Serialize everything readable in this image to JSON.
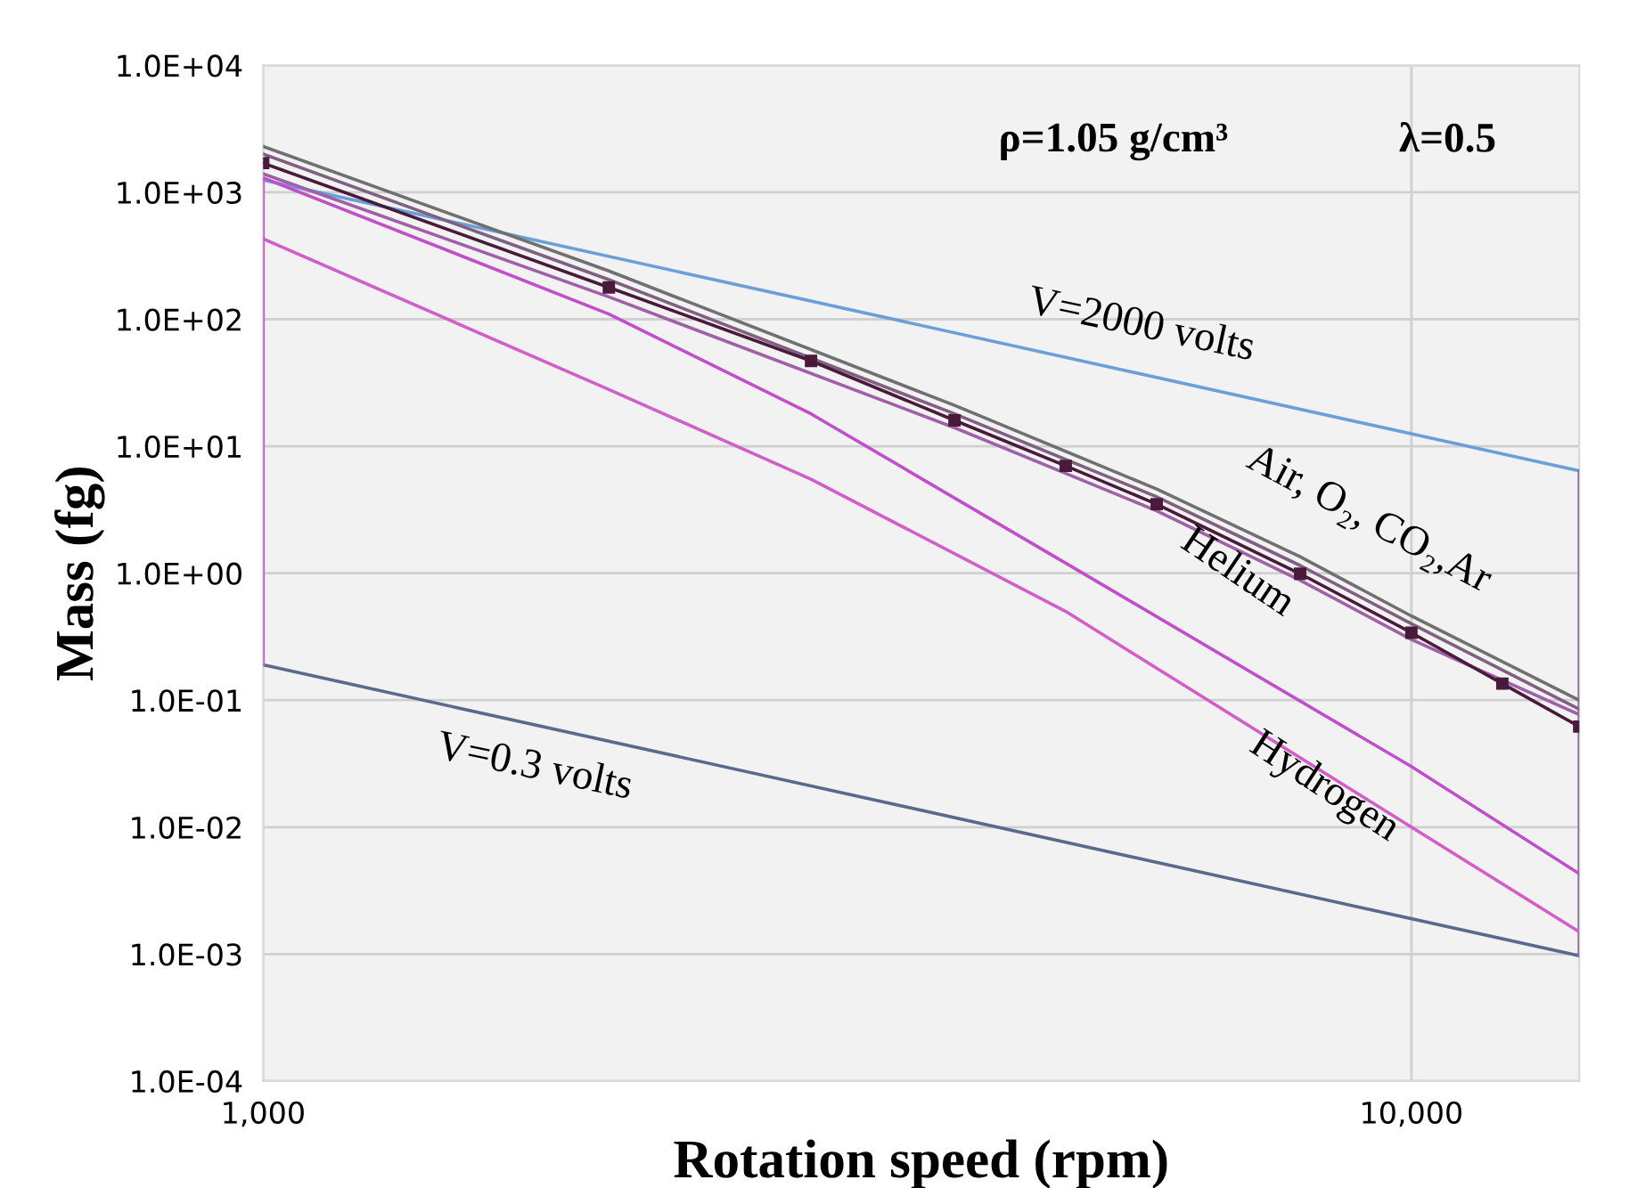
{
  "chart_data": {
    "type": "line",
    "xlabel": "Rotation speed (rpm)",
    "ylabel": "Mass (fg)",
    "log": "xy",
    "grid": true,
    "legend": false,
    "line_style": "solid",
    "xlim": [
      1000,
      14000
    ],
    "xticks": [
      {
        "value": 1000,
        "label": "1,000"
      },
      {
        "value": 10000,
        "label": "10,000"
      }
    ],
    "ylim": [
      0.0001,
      10000
    ],
    "yticks": [
      {
        "value": 0.0001,
        "label": "1.0E-04"
      },
      {
        "value": 0.001,
        "label": "1.0E-03"
      },
      {
        "value": 0.01,
        "label": "1.0E-02"
      },
      {
        "value": 0.1,
        "label": "1.0E-01"
      },
      {
        "value": 1,
        "label": "1.0E+00"
      },
      {
        "value": 10,
        "label": "1.0E+01"
      },
      {
        "value": 100,
        "label": "1.0E+02"
      },
      {
        "value": 1000,
        "label": "1.0E+03"
      },
      {
        "value": 10000,
        "label": "1.0E+04"
      }
    ],
    "series": [
      {
        "color": "#6a9fd8",
        "x": [
          1000,
          14000
        ],
        "values": [
          1250,
          6.4
        ]
      },
      {
        "color": "#5a6a8a",
        "x": [
          1000,
          14000
        ],
        "values": [
          0.19,
          0.00097
        ]
      },
      {
        "color": "#c060c0",
        "x": [
          1000,
          1000
        ],
        "values": [
          0.19,
          1250
        ]
      },
      {
        "color": "#9070a0",
        "x": [
          14000,
          14000
        ],
        "values": [
          0.00097,
          6.4
        ]
      },
      {
        "color": "#707070",
        "x": [
          1000,
          2000,
          4000,
          6000,
          8000,
          10000,
          14000
        ],
        "values": [
          2300,
          240,
          21,
          4.6,
          1.35,
          0.46,
          0.1
        ]
      },
      {
        "color": "#806080",
        "x": [
          1000,
          2000,
          4000,
          6000,
          8000,
          10000,
          14000
        ],
        "values": [
          2000,
          205,
          18,
          4.0,
          1.15,
          0.4,
          0.085
        ]
      },
      {
        "color": "#a060a8",
        "x": [
          1000,
          2000,
          4000,
          6000,
          8000,
          10000,
          14000
        ],
        "values": [
          1400,
          150,
          14,
          3.1,
          0.88,
          0.3,
          0.077
        ]
      },
      {
        "color": "#c050c8",
        "x": [
          1000,
          2000,
          3000,
          5000,
          10000,
          14000
        ],
        "values": [
          1300,
          110,
          18,
          1.2,
          0.03,
          0.0043
        ]
      },
      {
        "color": "#d060c8",
        "x": [
          1000,
          2000,
          3000,
          5000,
          10000,
          14000
        ],
        "values": [
          430,
          28,
          5.5,
          0.5,
          0.01,
          0.0015
        ]
      },
      {
        "color": "#4a1a3a",
        "marker": "square",
        "x": [
          1000,
          2000,
          3000,
          4000,
          5000,
          6000,
          8000,
          10000,
          12000,
          14000
        ],
        "values": [
          1700,
          178,
          47,
          16,
          7,
          3.5,
          0.99,
          0.34,
          0.135,
          0.062
        ]
      }
    ],
    "annotations": [
      "ρ=1.05 g/cm³",
      "λ=0.5",
      "V=2000 volts",
      "V=0.3 volts",
      "Air, O₂, CO₂,Ar",
      "Helium",
      "Hydrogen"
    ]
  }
}
